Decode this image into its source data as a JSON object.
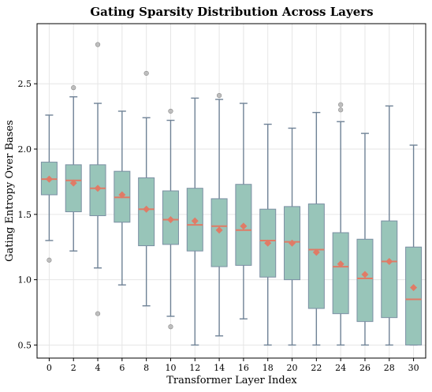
{
  "chart_data": {
    "type": "box",
    "title": "Gating Sparsity Distribution Across Layers",
    "xlabel": "Transformer Layer Index",
    "ylabel": "Gating Entropy Over Bases",
    "ylim": [
      0.4,
      2.96
    ],
    "yticks": [
      "0.5",
      "1.0",
      "1.5",
      "2.0",
      "2.5"
    ],
    "grid": true,
    "colors": {
      "box_fill": "#98c5b9",
      "box_edge": "#7b8fa3",
      "whisker": "#6f8296",
      "median": "#e07b66",
      "mean": "#e07b66",
      "outlier": "#b0b0b0"
    },
    "categories": [
      "0",
      "2",
      "4",
      "6",
      "8",
      "10",
      "12",
      "14",
      "16",
      "18",
      "20",
      "22",
      "24",
      "26",
      "28",
      "30"
    ],
    "boxes": [
      {
        "layer": "0",
        "whislo": 1.3,
        "q1": 1.65,
        "med": 1.77,
        "q3": 1.9,
        "whishi": 2.26,
        "mean": 1.77,
        "fliers": [
          1.15
        ]
      },
      {
        "layer": "2",
        "whislo": 1.22,
        "q1": 1.52,
        "med": 1.76,
        "q3": 1.88,
        "whishi": 2.4,
        "mean": 1.74,
        "fliers": [
          2.47
        ]
      },
      {
        "layer": "4",
        "whislo": 1.09,
        "q1": 1.49,
        "med": 1.7,
        "q3": 1.88,
        "whishi": 2.35,
        "mean": 1.7,
        "fliers": [
          2.8,
          0.74
        ]
      },
      {
        "layer": "6",
        "whislo": 0.96,
        "q1": 1.44,
        "med": 1.63,
        "q3": 1.83,
        "whishi": 2.29,
        "mean": 1.65,
        "fliers": []
      },
      {
        "layer": "8",
        "whislo": 0.8,
        "q1": 1.26,
        "med": 1.54,
        "q3": 1.78,
        "whishi": 2.24,
        "mean": 1.54,
        "fliers": [
          2.58
        ]
      },
      {
        "layer": "10",
        "whislo": 0.72,
        "q1": 1.27,
        "med": 1.46,
        "q3": 1.68,
        "whishi": 2.22,
        "mean": 1.46,
        "fliers": [
          2.29,
          0.64
        ]
      },
      {
        "layer": "12",
        "whislo": 0.5,
        "q1": 1.22,
        "med": 1.42,
        "q3": 1.7,
        "whishi": 2.39,
        "mean": 1.45,
        "fliers": []
      },
      {
        "layer": "14",
        "whislo": 0.57,
        "q1": 1.1,
        "med": 1.41,
        "q3": 1.62,
        "whishi": 2.38,
        "mean": 1.38,
        "fliers": [
          2.41
        ]
      },
      {
        "layer": "16",
        "whislo": 0.7,
        "q1": 1.11,
        "med": 1.38,
        "q3": 1.73,
        "whishi": 2.35,
        "mean": 1.41,
        "fliers": []
      },
      {
        "layer": "18",
        "whislo": 0.5,
        "q1": 1.02,
        "med": 1.3,
        "q3": 1.54,
        "whishi": 2.19,
        "mean": 1.28,
        "fliers": []
      },
      {
        "layer": "20",
        "whislo": 0.5,
        "q1": 1.0,
        "med": 1.29,
        "q3": 1.56,
        "whishi": 2.16,
        "mean": 1.28,
        "fliers": []
      },
      {
        "layer": "22",
        "whislo": 0.5,
        "q1": 0.78,
        "med": 1.23,
        "q3": 1.58,
        "whishi": 2.28,
        "mean": 1.21,
        "fliers": []
      },
      {
        "layer": "24",
        "whislo": 0.5,
        "q1": 0.74,
        "med": 1.1,
        "q3": 1.36,
        "whishi": 2.21,
        "mean": 1.12,
        "fliers": [
          2.34,
          2.3
        ]
      },
      {
        "layer": "26",
        "whislo": 0.5,
        "q1": 0.68,
        "med": 1.01,
        "q3": 1.31,
        "whishi": 2.12,
        "mean": 1.04,
        "fliers": []
      },
      {
        "layer": "28",
        "whislo": 0.5,
        "q1": 0.71,
        "med": 1.14,
        "q3": 1.45,
        "whishi": 2.33,
        "mean": 1.14,
        "fliers": []
      },
      {
        "layer": "30",
        "whislo": 0.5,
        "q1": 0.5,
        "med": 0.85,
        "q3": 1.25,
        "whishi": 2.03,
        "mean": 0.94,
        "fliers": []
      }
    ]
  }
}
